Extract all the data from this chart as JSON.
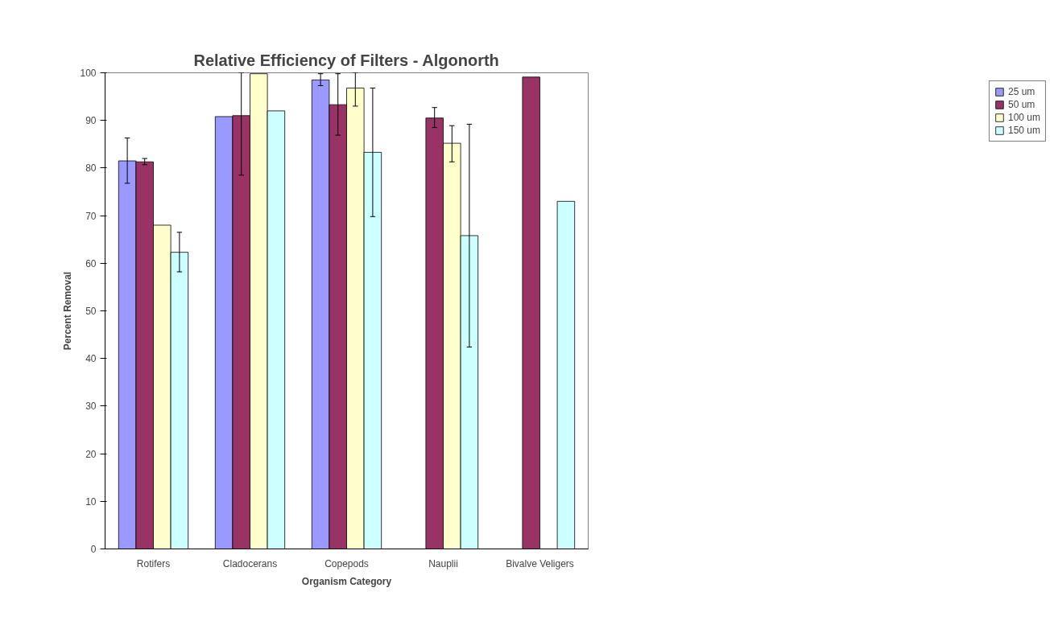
{
  "chart_data": {
    "type": "bar",
    "title": "Relative Efficiency of Filters - Algonorth",
    "xlabel": "Organism Category",
    "ylabel": "Percent Removal",
    "categories": [
      "Rotifers",
      "Cladocerans",
      "Copepods",
      "Nauplii",
      "Bivalve Veligers"
    ],
    "series": [
      {
        "name": "25 um",
        "color": "#9999ff",
        "values": [
          81.5,
          90.8,
          98.5,
          null,
          null
        ],
        "errors": [
          [
            76.8,
            86.3
          ],
          null,
          [
            97.3,
            99.8
          ],
          null,
          null
        ]
      },
      {
        "name": "50 um",
        "color": "#993366",
        "values": [
          81.3,
          91,
          93.3,
          90.5,
          99.1
        ],
        "errors": [
          [
            80.7,
            82
          ],
          [
            78.5,
            100
          ],
          [
            86.9,
            99.8
          ],
          [
            88.5,
            92.7
          ],
          null
        ]
      },
      {
        "name": "100 um",
        "color": "#ffffcc",
        "values": [
          68,
          99.8,
          96.8,
          85.2,
          null
        ],
        "errors": [
          null,
          null,
          [
            93,
            100
          ],
          [
            81.3,
            88.9
          ],
          null
        ]
      },
      {
        "name": "150 um",
        "color": "#ccffff",
        "values": [
          62.3,
          92,
          83.3,
          65.8,
          73
        ],
        "errors": [
          [
            58.2,
            66.5
          ],
          null,
          [
            69.8,
            96.8
          ],
          [
            42.4,
            89.2
          ],
          null
        ]
      }
    ],
    "ylim": [
      0,
      100
    ],
    "yticks": [
      0,
      10,
      20,
      30,
      40,
      50,
      60,
      70,
      80,
      90,
      100
    ],
    "grid": false,
    "legend": "right"
  }
}
